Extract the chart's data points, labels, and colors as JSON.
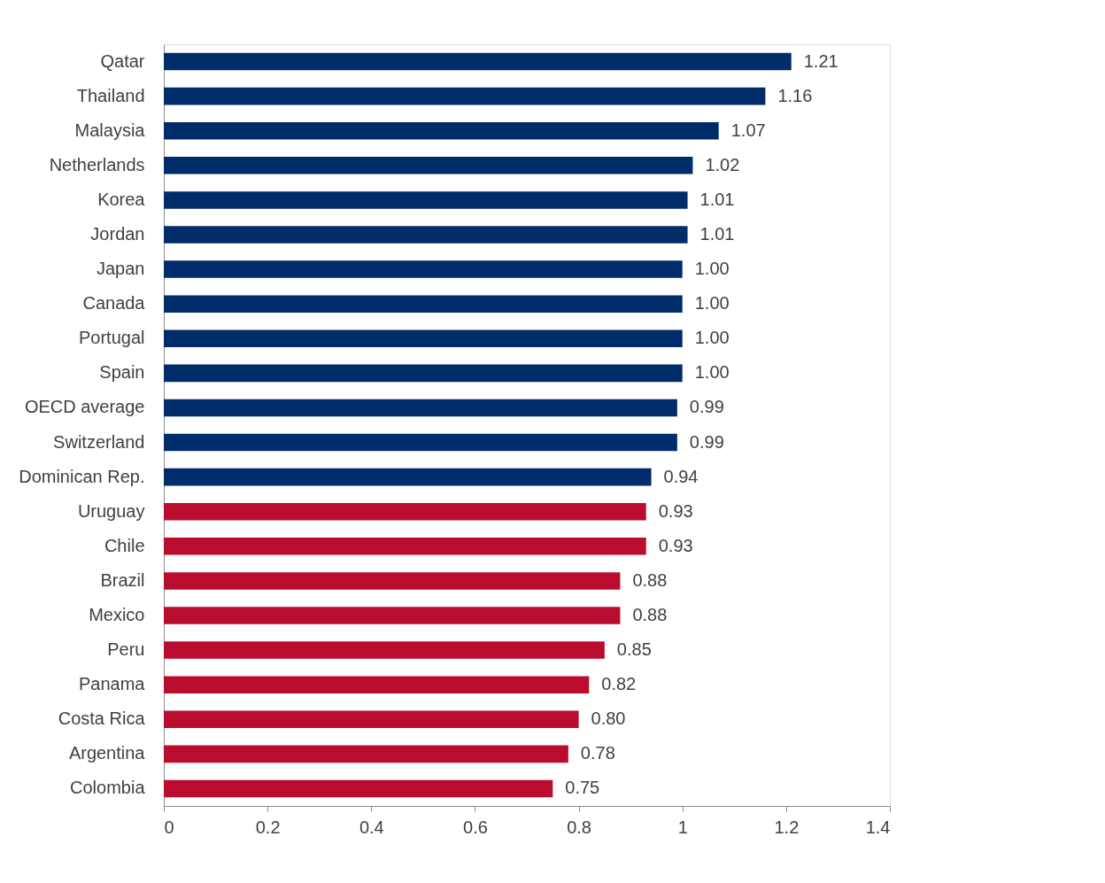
{
  "chart_data": {
    "type": "bar",
    "orientation": "horizontal",
    "categories": [
      "Qatar",
      "Thailand",
      "Malaysia",
      "Netherlands",
      "Korea",
      "Jordan",
      "Japan",
      "Canada",
      "Portugal",
      "Spain",
      "OECD average",
      "Switzerland",
      "Dominican Rep.",
      "Uruguay",
      "Chile",
      "Brazil",
      "Mexico",
      "Peru",
      "Panama",
      "Costa Rica",
      "Argentina",
      "Colombia"
    ],
    "values": [
      1.21,
      1.16,
      1.07,
      1.02,
      1.01,
      1.01,
      1.0,
      1.0,
      1.0,
      1.0,
      0.99,
      0.99,
      0.94,
      0.93,
      0.93,
      0.88,
      0.88,
      0.85,
      0.82,
      0.8,
      0.78,
      0.75
    ],
    "value_labels": [
      "1.21",
      "1.16",
      "1.07",
      "1.02",
      "1.01",
      "1.01",
      "1.00",
      "1.00",
      "1.00",
      "1.00",
      "0.99",
      "0.99",
      "0.94",
      "0.93",
      "0.93",
      "0.88",
      "0.88",
      "0.85",
      "0.82",
      "0.80",
      "0.78",
      "0.75"
    ],
    "colors": [
      "#002d6a",
      "#002d6a",
      "#002d6a",
      "#002d6a",
      "#002d6a",
      "#002d6a",
      "#002d6a",
      "#002d6a",
      "#002d6a",
      "#002d6a",
      "#002d6a",
      "#002d6a",
      "#002d6a",
      "#ba0c2f",
      "#ba0c2f",
      "#ba0c2f",
      "#ba0c2f",
      "#ba0c2f",
      "#ba0c2f",
      "#ba0c2f",
      "#ba0c2f",
      "#ba0c2f"
    ],
    "xlim": [
      0,
      1.4
    ],
    "xticks": [
      0,
      0.2,
      0.4,
      0.6,
      0.8,
      1,
      1.2,
      1.4
    ],
    "grid": false
  }
}
